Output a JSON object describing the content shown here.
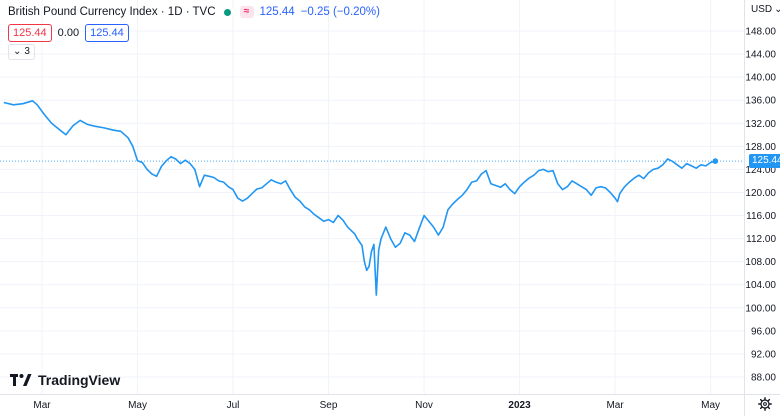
{
  "legend": {
    "title": "British Pound Currency Index · 1D · TVC",
    "last": "125.44",
    "change": "−0.25 (−0.20%)",
    "wave_icon": "≈"
  },
  "row2": {
    "bid": "125.44",
    "spread": "0.00",
    "ask": "125.44"
  },
  "row3": {
    "label": "3"
  },
  "currency": "USD",
  "logo": {
    "text": "TradingView"
  },
  "price_badge": "125.44",
  "colors": {
    "line": "#2196f3",
    "badge": "#2196f3"
  },
  "chart_data": {
    "type": "line",
    "title": "British Pound Currency Index · 1D · TVC",
    "xlabel": "",
    "ylabel": "",
    "ylim": [
      85,
      150
    ],
    "yticks": [
      88,
      92,
      96,
      100,
      104,
      108,
      112,
      116,
      120,
      124,
      128,
      132,
      136,
      140,
      144,
      148
    ],
    "xticks": [
      {
        "label": "Mar",
        "t": 0.0
      },
      {
        "label": "May",
        "t": 2.0
      },
      {
        "label": "Jul",
        "t": 4.0
      },
      {
        "label": "Sep",
        "t": 6.0
      },
      {
        "label": "Nov",
        "t": 8.0
      },
      {
        "label": "2023",
        "t": 10.0,
        "bold": true
      },
      {
        "label": "Mar",
        "t": 12.0
      },
      {
        "label": "May",
        "t": 14.0
      }
    ],
    "last_value": 125.44,
    "series": [
      {
        "points": [
          [
            -0.8,
            135.6
          ],
          [
            -0.6,
            135.2
          ],
          [
            -0.4,
            135.4
          ],
          [
            -0.2,
            135.9
          ],
          [
            -0.1,
            135.2
          ],
          [
            0.05,
            133.5
          ],
          [
            0.2,
            132.0
          ],
          [
            0.35,
            131.0
          ],
          [
            0.5,
            130.0
          ],
          [
            0.65,
            131.6
          ],
          [
            0.8,
            132.5
          ],
          [
            0.95,
            131.8
          ],
          [
            1.1,
            131.5
          ],
          [
            1.3,
            131.2
          ],
          [
            1.5,
            130.8
          ],
          [
            1.65,
            130.6
          ],
          [
            1.8,
            129.5
          ],
          [
            1.9,
            128.0
          ],
          [
            2.0,
            125.5
          ],
          [
            2.1,
            125.2
          ],
          [
            2.2,
            124.0
          ],
          [
            2.3,
            123.2
          ],
          [
            2.4,
            122.8
          ],
          [
            2.5,
            124.5
          ],
          [
            2.6,
            125.5
          ],
          [
            2.7,
            126.2
          ],
          [
            2.8,
            125.8
          ],
          [
            2.9,
            125.0
          ],
          [
            3.0,
            125.6
          ],
          [
            3.1,
            125.0
          ],
          [
            3.2,
            124.0
          ],
          [
            3.3,
            121.0
          ],
          [
            3.4,
            123.0
          ],
          [
            3.5,
            122.8
          ],
          [
            3.6,
            122.6
          ],
          [
            3.7,
            122.0
          ],
          [
            3.8,
            121.8
          ],
          [
            3.9,
            121.0
          ],
          [
            4.0,
            120.5
          ],
          [
            4.1,
            119.0
          ],
          [
            4.2,
            118.5
          ],
          [
            4.3,
            119.0
          ],
          [
            4.4,
            119.8
          ],
          [
            4.5,
            120.6
          ],
          [
            4.6,
            120.8
          ],
          [
            4.7,
            121.5
          ],
          [
            4.8,
            122.2
          ],
          [
            4.9,
            121.8
          ],
          [
            5.0,
            121.5
          ],
          [
            5.1,
            122.0
          ],
          [
            5.2,
            120.5
          ],
          [
            5.3,
            119.2
          ],
          [
            5.4,
            118.5
          ],
          [
            5.5,
            117.5
          ],
          [
            5.6,
            117.0
          ],
          [
            5.7,
            116.2
          ],
          [
            5.8,
            115.6
          ],
          [
            5.9,
            115.0
          ],
          [
            6.0,
            115.3
          ],
          [
            6.1,
            114.8
          ],
          [
            6.2,
            116.0
          ],
          [
            6.3,
            115.2
          ],
          [
            6.4,
            114.0
          ],
          [
            6.5,
            113.2
          ],
          [
            6.55,
            112.8
          ],
          [
            6.6,
            112.0
          ],
          [
            6.7,
            110.8
          ],
          [
            6.75,
            108.0
          ],
          [
            6.8,
            106.5
          ],
          [
            6.85,
            107.2
          ],
          [
            6.9,
            109.8
          ],
          [
            6.95,
            111.0
          ],
          [
            7.0,
            102.2
          ],
          [
            7.05,
            110.0
          ],
          [
            7.1,
            112.0
          ],
          [
            7.2,
            114.0
          ],
          [
            7.3,
            112.0
          ],
          [
            7.4,
            110.5
          ],
          [
            7.5,
            111.2
          ],
          [
            7.6,
            113.0
          ],
          [
            7.7,
            112.6
          ],
          [
            7.8,
            111.5
          ],
          [
            7.9,
            113.8
          ],
          [
            8.0,
            116.0
          ],
          [
            8.1,
            115.0
          ],
          [
            8.2,
            114.0
          ],
          [
            8.3,
            112.6
          ],
          [
            8.4,
            114.0
          ],
          [
            8.5,
            117.0
          ],
          [
            8.6,
            118.0
          ],
          [
            8.7,
            118.8
          ],
          [
            8.8,
            119.5
          ],
          [
            8.9,
            120.5
          ],
          [
            9.0,
            121.8
          ],
          [
            9.1,
            122.0
          ],
          [
            9.2,
            123.2
          ],
          [
            9.3,
            123.8
          ],
          [
            9.4,
            121.5
          ],
          [
            9.5,
            121.2
          ],
          [
            9.6,
            120.9
          ],
          [
            9.7,
            121.5
          ],
          [
            9.8,
            120.5
          ],
          [
            9.9,
            119.8
          ],
          [
            10.0,
            121.0
          ],
          [
            10.1,
            121.8
          ],
          [
            10.2,
            122.5
          ],
          [
            10.3,
            123.0
          ],
          [
            10.4,
            123.8
          ],
          [
            10.5,
            124.0
          ],
          [
            10.6,
            123.6
          ],
          [
            10.7,
            123.8
          ],
          [
            10.8,
            121.5
          ],
          [
            10.9,
            120.5
          ],
          [
            11.0,
            121.0
          ],
          [
            11.1,
            122.0
          ],
          [
            11.2,
            121.5
          ],
          [
            11.3,
            121.0
          ],
          [
            11.4,
            120.5
          ],
          [
            11.5,
            119.5
          ],
          [
            11.6,
            120.8
          ],
          [
            11.7,
            121.0
          ],
          [
            11.8,
            120.8
          ],
          [
            11.9,
            120.0
          ],
          [
            12.0,
            119.0
          ],
          [
            12.05,
            118.4
          ],
          [
            12.1,
            119.8
          ],
          [
            12.2,
            121.0
          ],
          [
            12.3,
            121.8
          ],
          [
            12.4,
            122.5
          ],
          [
            12.5,
            123.0
          ],
          [
            12.6,
            122.4
          ],
          [
            12.7,
            123.4
          ],
          [
            12.8,
            124.0
          ],
          [
            12.9,
            124.2
          ],
          [
            13.0,
            124.8
          ],
          [
            13.1,
            125.8
          ],
          [
            13.2,
            125.4
          ],
          [
            13.3,
            124.8
          ],
          [
            13.4,
            124.2
          ],
          [
            13.5,
            125.0
          ],
          [
            13.6,
            124.6
          ],
          [
            13.7,
            124.2
          ],
          [
            13.8,
            124.8
          ],
          [
            13.9,
            124.6
          ],
          [
            14.0,
            125.2
          ],
          [
            14.1,
            125.44
          ]
        ]
      }
    ]
  }
}
